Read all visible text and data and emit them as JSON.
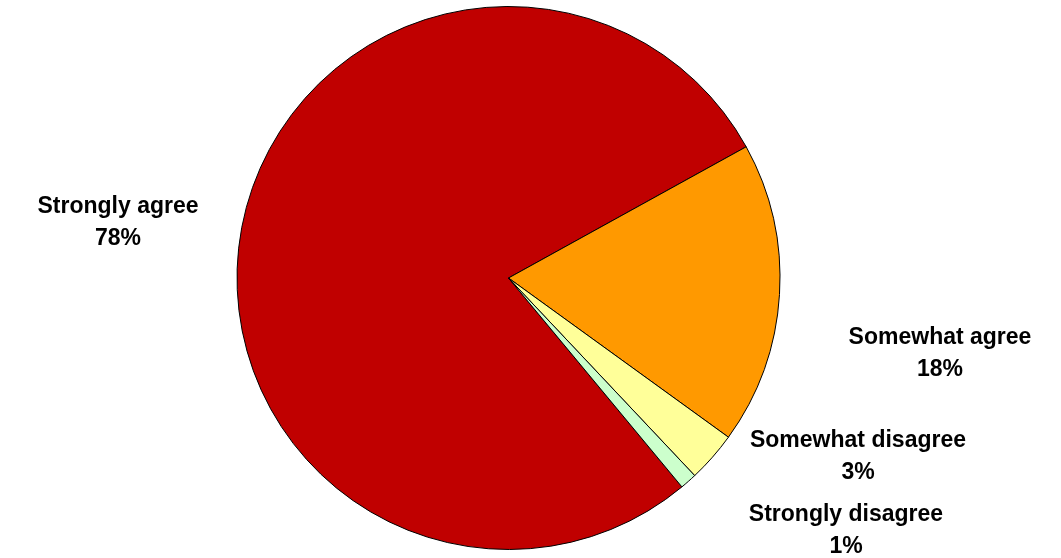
{
  "chart_data": {
    "type": "pie",
    "categories": [
      "Strongly agree",
      "Somewhat agree",
      "Somewhat disagree",
      "Strongly disagree"
    ],
    "values": [
      78,
      18,
      3,
      1
    ],
    "colors": [
      "#c00000",
      "#ff9900",
      "#ffff99",
      "#ccffcc"
    ],
    "value_labels": [
      "78%",
      "18%",
      "3%",
      "1%"
    ],
    "legend": false
  }
}
